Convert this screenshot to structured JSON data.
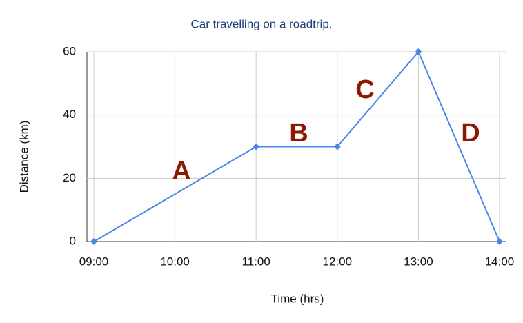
{
  "chart_data": {
    "type": "line",
    "title": "Car travelling on a roadtrip.",
    "x_label": "Time (hrs)",
    "y_label": "Distance (km)",
    "x": [
      9,
      11,
      12,
      13,
      14
    ],
    "series": [
      {
        "name": "Distance",
        "color": "#4a86e8",
        "values": [
          0,
          30,
          30,
          60,
          0
        ]
      }
    ],
    "xlim": [
      9,
      14
    ],
    "xticks": [
      {
        "value": 9,
        "label": "09:00"
      },
      {
        "value": 10,
        "label": "10:00"
      },
      {
        "value": 11,
        "label": "11:00"
      },
      {
        "value": 12,
        "label": "12:00"
      },
      {
        "value": 13,
        "label": "13:00"
      },
      {
        "value": 14,
        "label": "14:00"
      }
    ],
    "ylim": [
      0,
      60
    ],
    "yticks": [
      0,
      20,
      40,
      60
    ],
    "grid": true,
    "annotations": [
      "A",
      "B",
      "C",
      "D"
    ]
  }
}
